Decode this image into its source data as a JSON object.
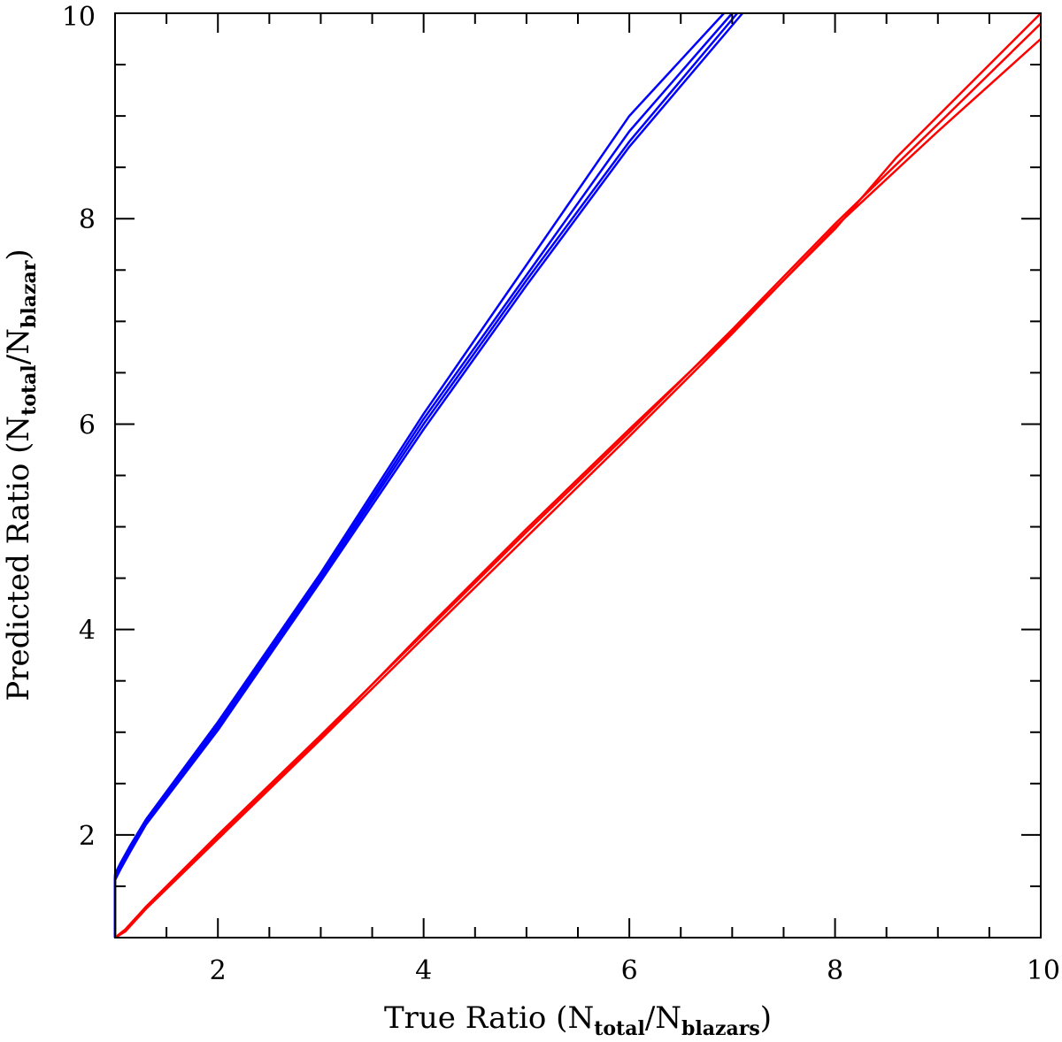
{
  "chart_data": {
    "type": "line",
    "title": "",
    "xlabel": {
      "pre": "True Ratio (N",
      "sub1": "total",
      "mid": "/N",
      "sub2": "blazars",
      "post": ")"
    },
    "ylabel": {
      "pre": "Predicted Ratio (N",
      "sub1": "total",
      "mid": "/N",
      "sub2": "blazar",
      "post": ")"
    },
    "xlim": [
      1,
      10
    ],
    "ylim": [
      1,
      10
    ],
    "xticks": [
      "2",
      "4",
      "6",
      "8",
      "10"
    ],
    "yticks": [
      "2",
      "4",
      "6",
      "8",
      "10"
    ],
    "grid": false,
    "legend": "none",
    "series": [
      {
        "color": "#0000ff",
        "points": [
          [
            1.0,
            1.0
          ],
          [
            1.0,
            1.62
          ],
          [
            1.05,
            1.72
          ],
          [
            1.15,
            1.9
          ],
          [
            1.3,
            2.15
          ],
          [
            2.0,
            3.1
          ],
          [
            3.0,
            4.55
          ],
          [
            4.0,
            6.1
          ],
          [
            5.0,
            7.55
          ],
          [
            6.0,
            9.0
          ],
          [
            6.92,
            10.0
          ]
        ]
      },
      {
        "color": "#0000ff",
        "points": [
          [
            1.0,
            1.0
          ],
          [
            1.0,
            1.6
          ],
          [
            1.05,
            1.7
          ],
          [
            1.15,
            1.88
          ],
          [
            1.3,
            2.13
          ],
          [
            2.0,
            3.08
          ],
          [
            3.0,
            4.52
          ],
          [
            4.0,
            6.05
          ],
          [
            5.0,
            7.45
          ],
          [
            6.0,
            8.85
          ],
          [
            7.0,
            10.0
          ]
        ]
      },
      {
        "color": "#0000ff",
        "points": [
          [
            1.0,
            1.0
          ],
          [
            1.0,
            1.58
          ],
          [
            1.05,
            1.68
          ],
          [
            1.15,
            1.86
          ],
          [
            1.3,
            2.12
          ],
          [
            2.0,
            3.05
          ],
          [
            3.0,
            4.5
          ],
          [
            4.0,
            6.0
          ],
          [
            5.0,
            7.4
          ],
          [
            6.0,
            8.75
          ],
          [
            7.05,
            10.0
          ]
        ]
      },
      {
        "color": "#0000ff",
        "points": [
          [
            1.0,
            1.0
          ],
          [
            1.0,
            1.56
          ],
          [
            1.05,
            1.66
          ],
          [
            1.15,
            1.84
          ],
          [
            1.3,
            2.1
          ],
          [
            2.0,
            3.02
          ],
          [
            3.0,
            4.47
          ],
          [
            4.0,
            5.95
          ],
          [
            5.0,
            7.35
          ],
          [
            6.0,
            8.7
          ],
          [
            7.1,
            10.0
          ]
        ]
      },
      {
        "color": "#ff0000",
        "points": [
          [
            1.0,
            1.0
          ],
          [
            1.1,
            1.07
          ],
          [
            1.3,
            1.3
          ],
          [
            2.0,
            1.98
          ],
          [
            3.0,
            2.95
          ],
          [
            4.0,
            3.98
          ],
          [
            5.0,
            4.98
          ],
          [
            6.0,
            5.95
          ],
          [
            7.0,
            6.9
          ],
          [
            8.0,
            7.9
          ],
          [
            8.6,
            8.6
          ],
          [
            9.0,
            9.0
          ],
          [
            10.0,
            10.0
          ]
        ]
      },
      {
        "color": "#ff0000",
        "points": [
          [
            1.0,
            1.0
          ],
          [
            1.1,
            1.08
          ],
          [
            1.3,
            1.3
          ],
          [
            2.0,
            2.0
          ],
          [
            3.0,
            2.97
          ],
          [
            4.0,
            3.96
          ],
          [
            5.0,
            4.95
          ],
          [
            6.0,
            5.92
          ],
          [
            7.0,
            6.92
          ],
          [
            8.0,
            7.95
          ],
          [
            9.0,
            8.92
          ],
          [
            10.0,
            9.9
          ]
        ]
      },
      {
        "color": "#ff0000",
        "points": [
          [
            1.0,
            1.0
          ],
          [
            1.1,
            1.06
          ],
          [
            1.3,
            1.28
          ],
          [
            2.0,
            1.96
          ],
          [
            3.0,
            2.93
          ],
          [
            4.0,
            3.92
          ],
          [
            5.0,
            4.9
          ],
          [
            6.0,
            5.88
          ],
          [
            7.0,
            6.88
          ],
          [
            8.0,
            7.92
          ],
          [
            9.0,
            8.85
          ],
          [
            10.0,
            9.75
          ]
        ]
      }
    ]
  }
}
